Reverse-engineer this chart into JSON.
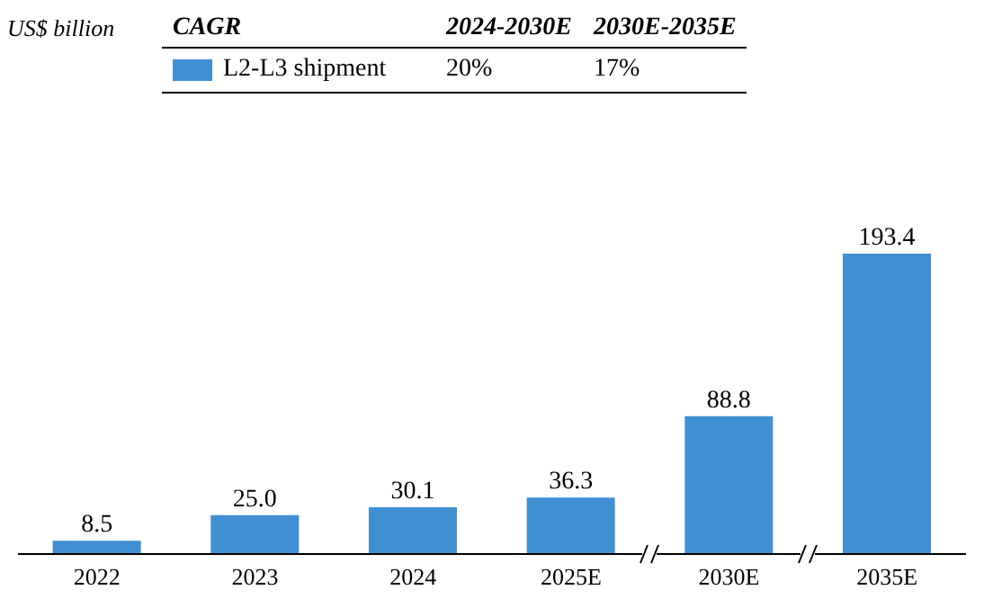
{
  "chart_data": {
    "type": "bar",
    "categories": [
      "2022",
      "2023",
      "2024",
      "2025E",
      "2030E",
      "2035E"
    ],
    "series": [
      {
        "name": "L2-L3 shipment",
        "color": "#3f8fd2",
        "values": [
          8.5,
          25.0,
          30.1,
          36.3,
          88.8,
          193.4
        ],
        "value_labels": [
          "8.5",
          "25.0",
          "30.1",
          "36.3",
          "88.8",
          "193.4"
        ]
      }
    ],
    "legend": "top left",
    "annotations": [
      "US$ billion",
      "CAGR",
      "2024-2030E",
      "2030E-2035E",
      "20%",
      "17%"
    ]
  }
}
